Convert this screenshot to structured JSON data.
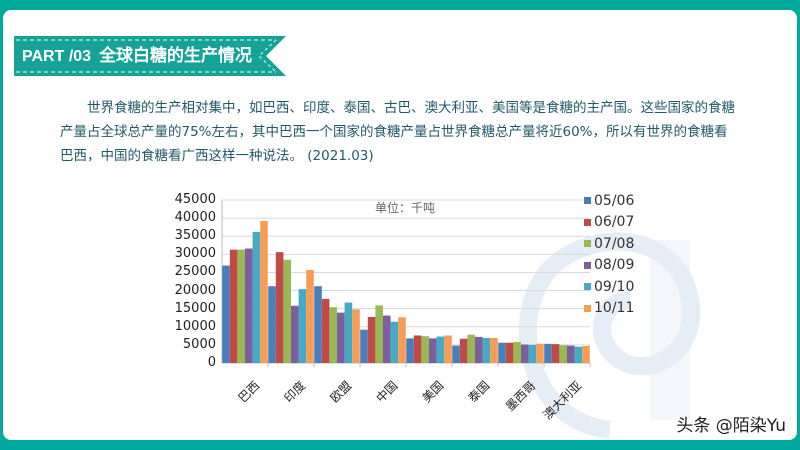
{
  "banner": {
    "part": "PART /03",
    "title": "全球白糖的生产情况",
    "bg_color": "#14a396"
  },
  "paragraph": "世界食糖的生产相对集中，如巴西、印度、泰国、古巴、澳大利亚、美国等是食糖的主产国。这些国家的食糖产量占全球总产量的75%左右，其中巴西一个国家的食糖产量占世界食糖总产量将近60%，所以有世界的食糖看巴西，中国的食糖看广西这样一种说法。 (2021.03)",
  "watermark": "头条 @陌染Yu",
  "chart_data": {
    "type": "bar",
    "title": "",
    "annotation": "单位：千吨",
    "xlabel": "",
    "ylabel": "",
    "ylim": [
      0,
      45000
    ],
    "yticks": [
      "45000",
      "40000",
      "35000",
      "30000",
      "25000",
      "20000",
      "15000",
      "10000",
      "5000",
      "0"
    ],
    "grid": true,
    "legend_position": "right",
    "categories": [
      "巴西",
      "印度",
      "欧盟",
      "中国",
      "美国",
      "泰国",
      "墨西哥",
      "澳大利亚"
    ],
    "series": [
      {
        "name": "05/06",
        "color": "#4a7ebb",
        "values": [
          26900,
          21200,
          21200,
          9200,
          6800,
          4800,
          5600,
          5300
        ]
      },
      {
        "name": "06/07",
        "color": "#be4b48",
        "values": [
          31300,
          30600,
          17700,
          12700,
          7600,
          6700,
          5600,
          5200
        ]
      },
      {
        "name": "07/08",
        "color": "#98b954",
        "values": [
          31300,
          28500,
          15400,
          15900,
          7400,
          7800,
          5800,
          4900
        ]
      },
      {
        "name": "08/09",
        "color": "#7d5fa0",
        "values": [
          31600,
          15800,
          13900,
          13100,
          6800,
          7200,
          5100,
          4800
        ]
      },
      {
        "name": "09/10",
        "color": "#46aac5",
        "values": [
          36200,
          20400,
          16700,
          11400,
          7300,
          6900,
          5000,
          4500
        ]
      },
      {
        "name": "10/11",
        "color": "#f59d56",
        "values": [
          39200,
          25700,
          14800,
          12600,
          7600,
          6900,
          5300,
          4700
        ]
      }
    ]
  }
}
